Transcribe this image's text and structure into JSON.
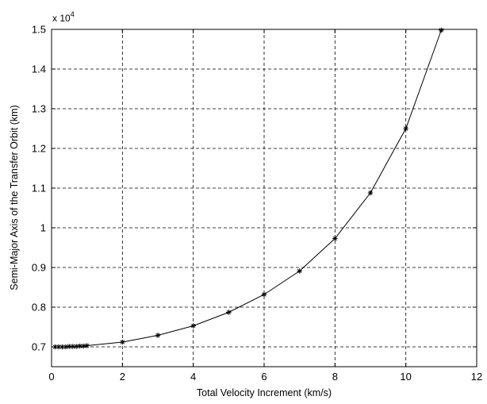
{
  "chart_data": {
    "type": "line",
    "xlabel": "Total Velocity Increment (km/s)",
    "ylabel": "Semi-Major Axis of the Transfer Orbit (km)",
    "y_multiplier_label": "x 10",
    "y_multiplier_exponent": "4",
    "xlim": [
      0,
      12
    ],
    "ylim": [
      0.65,
      1.5
    ],
    "grid": true,
    "x_ticks": [
      0,
      2,
      4,
      6,
      8,
      10,
      12
    ],
    "x_tick_labels": [
      "0",
      "2",
      "4",
      "6",
      "8",
      "10",
      "12"
    ],
    "y_ticks": [
      0.7,
      0.8,
      0.9,
      1.0,
      1.1,
      1.2,
      1.3,
      1.4,
      1.5
    ],
    "y_tick_labels": [
      "0.7",
      "0.8",
      "0.9",
      "1",
      "1.1",
      "1.2",
      "1.3",
      "1.4",
      "1.5"
    ],
    "series": [
      {
        "marker": "asterisk",
        "color": "#000000",
        "x": [
          0.1,
          0.2,
          0.3,
          0.4,
          0.5,
          0.6,
          0.7,
          0.8,
          0.9,
          1,
          2,
          3,
          4,
          5,
          6,
          7,
          8,
          9,
          10,
          11
        ],
        "y": [
          0.7,
          0.7,
          0.7,
          0.7,
          0.701,
          0.701,
          0.701,
          0.702,
          0.702,
          0.703,
          0.712,
          0.729,
          0.753,
          0.787,
          0.832,
          0.891,
          0.973,
          1.088,
          1.25,
          1.498
        ]
      }
    ]
  }
}
